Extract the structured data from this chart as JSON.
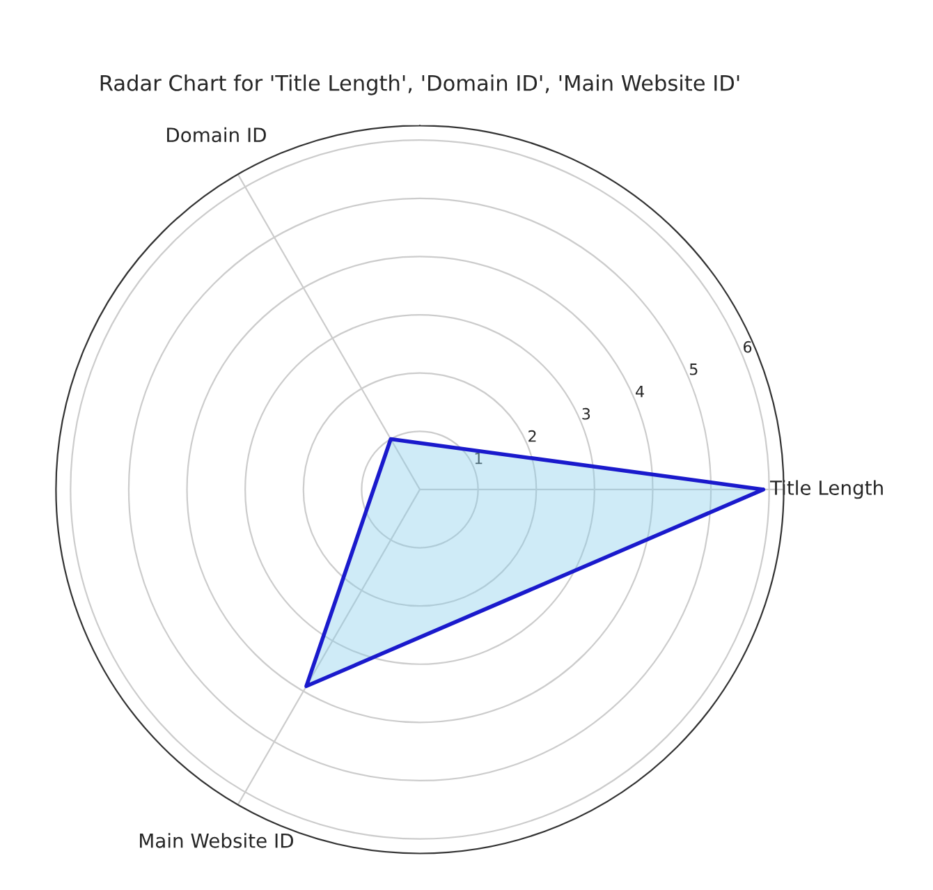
{
  "chart_data": {
    "type": "radar",
    "title": "Radar Chart for 'Title Length', 'Domain ID', 'Main Website ID'",
    "categories": [
      "Title Length",
      "Main Website ID",
      "Domain ID"
    ],
    "series": [
      {
        "color": "#1a1acc",
        "values": [
          5.9,
          3.9,
          1.0
        ]
      }
    ],
    "ylim": [
      0,
      6.25
    ],
    "yticks": [
      1,
      2,
      3,
      4,
      5,
      6
    ],
    "grid": true,
    "marker": "none"
  }
}
